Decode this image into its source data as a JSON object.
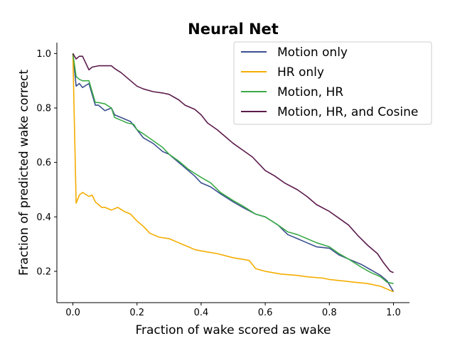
{
  "chart_data": {
    "type": "line",
    "title": "Neural Net",
    "xlabel": "Fraction of wake scored as wake",
    "ylabel": "Fraction of predicted wake correct",
    "xlim": [
      -0.05,
      1.05
    ],
    "ylim": [
      0.085,
      1.04
    ],
    "xticks": [
      0.0,
      0.2,
      0.4,
      0.6,
      0.8,
      1.0
    ],
    "xtick_labels": [
      "0.0",
      "0.2",
      "0.4",
      "0.6",
      "0.8",
      "1.0"
    ],
    "yticks": [
      0.2,
      0.4,
      0.6,
      0.8,
      1.0
    ],
    "ytick_labels": [
      "0.2",
      "0.4",
      "0.6",
      "0.8",
      "1.0"
    ],
    "grid": false,
    "legend_position": "top-right",
    "series": [
      {
        "name": "Motion only",
        "color": "#3b4f8f",
        "x": [
          0.0,
          0.01,
          0.02,
          0.03,
          0.05,
          0.07,
          0.08,
          0.1,
          0.12,
          0.13,
          0.15,
          0.18,
          0.2,
          0.22,
          0.25,
          0.28,
          0.3,
          0.33,
          0.36,
          0.38,
          0.4,
          0.43,
          0.46,
          0.5,
          0.53,
          0.57,
          0.6,
          0.64,
          0.67,
          0.7,
          0.73,
          0.76,
          0.8,
          0.83,
          0.86,
          0.9,
          0.93,
          0.96,
          0.98,
          1.0
        ],
        "y": [
          1.0,
          0.88,
          0.89,
          0.875,
          0.89,
          0.81,
          0.81,
          0.79,
          0.8,
          0.775,
          0.765,
          0.75,
          0.72,
          0.69,
          0.67,
          0.64,
          0.63,
          0.6,
          0.57,
          0.55,
          0.525,
          0.51,
          0.485,
          0.455,
          0.435,
          0.41,
          0.4,
          0.37,
          0.335,
          0.32,
          0.305,
          0.29,
          0.285,
          0.26,
          0.245,
          0.225,
          0.205,
          0.185,
          0.165,
          0.125
        ]
      },
      {
        "name": "HR only",
        "color": "#f4ad00",
        "x": [
          0.0,
          0.01,
          0.02,
          0.03,
          0.05,
          0.06,
          0.07,
          0.09,
          0.1,
          0.12,
          0.14,
          0.16,
          0.18,
          0.2,
          0.22,
          0.24,
          0.27,
          0.3,
          0.33,
          0.36,
          0.38,
          0.4,
          0.45,
          0.5,
          0.55,
          0.57,
          0.6,
          0.65,
          0.7,
          0.73,
          0.78,
          0.8,
          0.84,
          0.88,
          0.92,
          0.96,
          0.99,
          1.0
        ],
        "y": [
          1.0,
          0.45,
          0.48,
          0.49,
          0.475,
          0.48,
          0.455,
          0.435,
          0.435,
          0.425,
          0.435,
          0.42,
          0.41,
          0.385,
          0.365,
          0.34,
          0.325,
          0.32,
          0.305,
          0.29,
          0.28,
          0.275,
          0.265,
          0.25,
          0.24,
          0.21,
          0.2,
          0.19,
          0.185,
          0.18,
          0.175,
          0.17,
          0.165,
          0.16,
          0.155,
          0.145,
          0.13,
          0.125
        ]
      },
      {
        "name": "Motion, HR",
        "color": "#3aaa46",
        "x": [
          0.0,
          0.01,
          0.02,
          0.03,
          0.05,
          0.07,
          0.08,
          0.1,
          0.12,
          0.13,
          0.15,
          0.17,
          0.19,
          0.2,
          0.22,
          0.25,
          0.28,
          0.3,
          0.33,
          0.36,
          0.38,
          0.4,
          0.43,
          0.46,
          0.5,
          0.53,
          0.57,
          0.6,
          0.64,
          0.67,
          0.7,
          0.73,
          0.76,
          0.8,
          0.83,
          0.86,
          0.9,
          0.93,
          0.96,
          0.98,
          1.0
        ],
        "y": [
          1.0,
          0.915,
          0.905,
          0.9,
          0.9,
          0.82,
          0.82,
          0.815,
          0.8,
          0.765,
          0.755,
          0.745,
          0.74,
          0.72,
          0.705,
          0.68,
          0.655,
          0.63,
          0.605,
          0.575,
          0.56,
          0.545,
          0.525,
          0.49,
          0.46,
          0.44,
          0.41,
          0.4,
          0.37,
          0.345,
          0.335,
          0.32,
          0.305,
          0.29,
          0.265,
          0.245,
          0.215,
          0.195,
          0.18,
          0.16,
          0.155
        ]
      },
      {
        "name": "Motion, HR, and Cosine",
        "color": "#5b1a4b",
        "x": [
          0.0,
          0.01,
          0.02,
          0.03,
          0.05,
          0.06,
          0.08,
          0.1,
          0.12,
          0.13,
          0.15,
          0.18,
          0.2,
          0.22,
          0.25,
          0.28,
          0.3,
          0.33,
          0.35,
          0.38,
          0.4,
          0.42,
          0.45,
          0.48,
          0.5,
          0.53,
          0.56,
          0.6,
          0.63,
          0.66,
          0.7,
          0.73,
          0.76,
          0.8,
          0.83,
          0.86,
          0.89,
          0.92,
          0.95,
          0.97,
          0.99,
          1.0
        ],
        "y": [
          1.0,
          0.98,
          0.99,
          0.99,
          0.94,
          0.95,
          0.955,
          0.955,
          0.955,
          0.945,
          0.93,
          0.9,
          0.88,
          0.87,
          0.86,
          0.855,
          0.85,
          0.83,
          0.81,
          0.795,
          0.775,
          0.745,
          0.72,
          0.69,
          0.67,
          0.645,
          0.62,
          0.57,
          0.55,
          0.525,
          0.5,
          0.475,
          0.445,
          0.42,
          0.395,
          0.37,
          0.33,
          0.295,
          0.265,
          0.23,
          0.2,
          0.195
        ]
      }
    ]
  }
}
